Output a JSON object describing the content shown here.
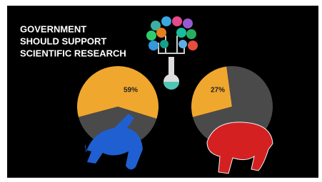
{
  "title": [
    "GOVERNMENT",
    "SHOULD SUPPORT",
    "SCIENTIFIC RESEARCH"
  ],
  "chart_data": [
    {
      "type": "pie",
      "values": [
        59,
        41
      ],
      "value_labels": [
        "59%",
        null
      ],
      "colors": [
        "#f0a72e",
        "#4a4a4a"
      ]
    },
    {
      "type": "pie",
      "values": [
        27,
        73
      ],
      "value_labels": [
        "27%",
        null
      ],
      "colors": [
        "#f0a72e",
        "#4a4a4a"
      ]
    }
  ]
}
